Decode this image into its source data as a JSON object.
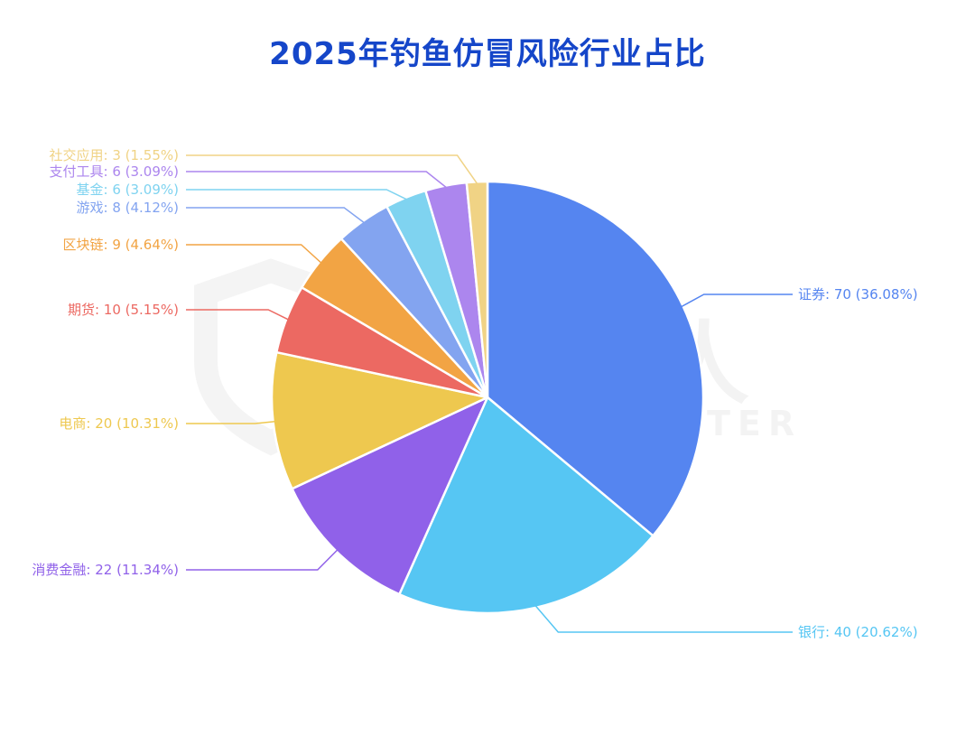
{
  "watermark": {
    "cn": "威胁猎人",
    "en": "THREAT HUNTER"
  },
  "chart_data": {
    "type": "pie",
    "title": "2025年钓鱼仿冒风险行业占比",
    "start_angle_deg": 0,
    "direction": "clockwise",
    "slices": [
      {
        "label": "证券",
        "value": 70,
        "percent": "36.08%",
        "display": "证券: 70 (36.08%)",
        "color": "#5585f0"
      },
      {
        "label": "银行",
        "value": 40,
        "percent": "20.62%",
        "display": "银行: 40 (20.62%)",
        "color": "#56c6f3"
      },
      {
        "label": "消费金融",
        "value": 22,
        "percent": "11.34%",
        "display": "消费金融: 22 (11.34%)",
        "color": "#9061e9"
      },
      {
        "label": "电商",
        "value": 20,
        "percent": "10.31%",
        "display": "电商: 20 (10.31%)",
        "color": "#eec84f"
      },
      {
        "label": "期货",
        "value": 10,
        "percent": "5.15%",
        "display": "期货: 10 (5.15%)",
        "color": "#ec6962"
      },
      {
        "label": "区块链",
        "value": 9,
        "percent": "4.64%",
        "display": "区块链: 9 (4.64%)",
        "color": "#f2a444"
      },
      {
        "label": "游戏",
        "value": 8,
        "percent": "4.12%",
        "display": "游戏: 8 (4.12%)",
        "color": "#83a4f0"
      },
      {
        "label": "基金",
        "value": 6,
        "percent": "3.09%",
        "display": "基金: 6 (3.09%)",
        "color": "#7fd3f0"
      },
      {
        "label": "支付工具",
        "value": 6,
        "percent": "3.09%",
        "display": "支付工具: 6 (3.09%)",
        "color": "#ac86ee"
      },
      {
        "label": "社交应用",
        "value": 3,
        "percent": "1.55%",
        "display": "社交应用: 3 (1.55%)",
        "color": "#f0d385"
      }
    ]
  }
}
